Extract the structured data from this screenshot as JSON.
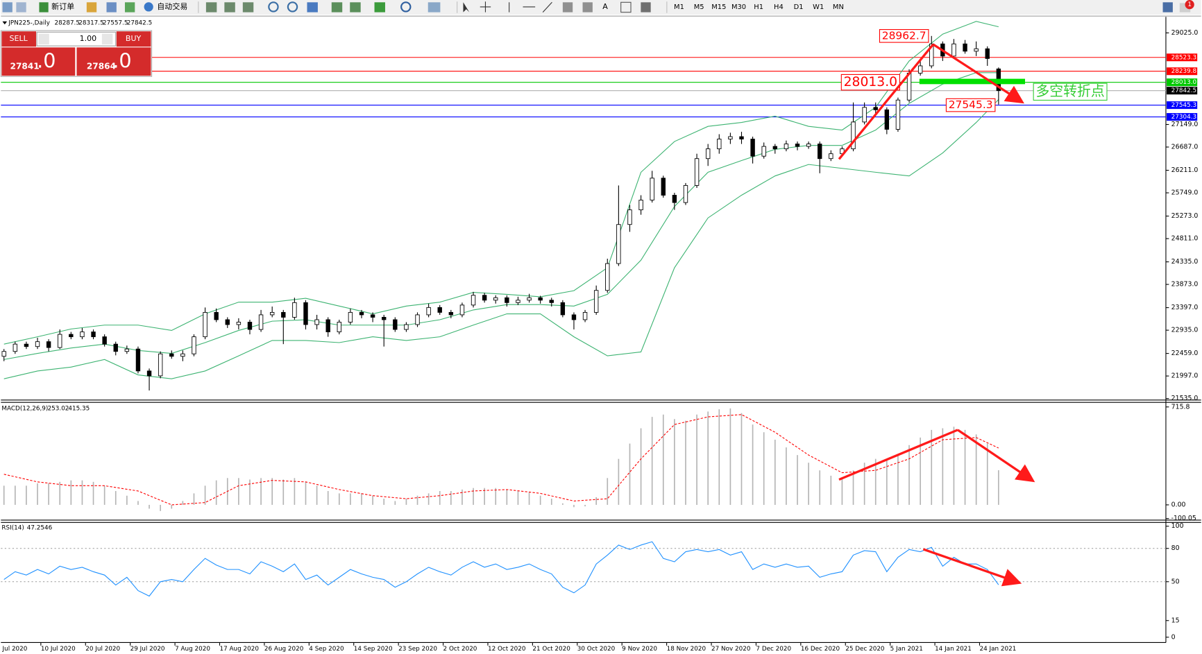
{
  "toolbar": {
    "new_order": "新订单",
    "auto_trading": "自动交易",
    "timeframes": [
      "M1",
      "M5",
      "M15",
      "M30",
      "H1",
      "H4",
      "D1",
      "W1",
      "MN"
    ],
    "badge": "1"
  },
  "trade_panel": {
    "sell": "SELL",
    "buy": "BUY",
    "lots": "1.00",
    "sell_price": "27841",
    "sell_pips": ".0",
    "buy_price": "27864",
    "buy_pips": ".0"
  },
  "chart_data": [
    {
      "type": "candlestick",
      "symbol": "JPN225-,Daily",
      "ohlc": [
        [
          22400,
          22550,
          22300,
          22500
        ],
        [
          22500,
          22700,
          22450,
          22650
        ],
        [
          22650,
          22700,
          22550,
          22600
        ],
        [
          22600,
          22780,
          22550,
          22700
        ],
        [
          22700,
          22750,
          22500,
          22580
        ],
        [
          22580,
          22950,
          22550,
          22850
        ],
        [
          22850,
          22900,
          22750,
          22800
        ],
        [
          22800,
          22980,
          22750,
          22900
        ],
        [
          22900,
          22950,
          22750,
          22800
        ],
        [
          22800,
          22850,
          22600,
          22650
        ],
        [
          22650,
          22700,
          22420,
          22500
        ],
        [
          22500,
          22620,
          22450,
          22550
        ],
        [
          22550,
          22600,
          22050,
          22100
        ],
        [
          22100,
          22150,
          21700,
          22000
        ],
        [
          22000,
          22500,
          21950,
          22450
        ],
        [
          22450,
          22520,
          22350,
          22400
        ],
        [
          22400,
          22520,
          22300,
          22450
        ],
        [
          22450,
          22850,
          22400,
          22800
        ],
        [
          22800,
          23400,
          22750,
          23300
        ],
        [
          23300,
          23380,
          23100,
          23150
        ],
        [
          23150,
          23200,
          22980,
          23050
        ],
        [
          23050,
          23180,
          22950,
          23100
        ],
        [
          23100,
          23150,
          22850,
          22950
        ],
        [
          22950,
          23350,
          22900,
          23250
        ],
        [
          23250,
          23420,
          23200,
          23300
        ],
        [
          23300,
          23350,
          22650,
          23200
        ],
        [
          23200,
          23600,
          23150,
          23500
        ],
        [
          23500,
          23550,
          22950,
          23050
        ],
        [
          23050,
          23250,
          22950,
          23150
        ],
        [
          23150,
          23200,
          22800,
          22900
        ],
        [
          22900,
          23150,
          22850,
          23100
        ],
        [
          23100,
          23380,
          23050,
          23300
        ],
        [
          23300,
          23350,
          23180,
          23250
        ],
        [
          23250,
          23300,
          23100,
          23200
        ],
        [
          23200,
          23250,
          22600,
          23150
        ],
        [
          23150,
          23200,
          22900,
          22950
        ],
        [
          22950,
          23100,
          22900,
          23050
        ],
        [
          23050,
          23300,
          23000,
          23250
        ],
        [
          23250,
          23480,
          23200,
          23400
        ],
        [
          23400,
          23450,
          23250,
          23300
        ],
        [
          23300,
          23350,
          23180,
          23250
        ],
        [
          23250,
          23500,
          23200,
          23450
        ],
        [
          23450,
          23720,
          23400,
          23650
        ],
        [
          23650,
          23700,
          23500,
          23550
        ],
        [
          23550,
          23650,
          23480,
          23600
        ],
        [
          23600,
          23650,
          23420,
          23500
        ],
        [
          23500,
          23620,
          23450,
          23550
        ],
        [
          23550,
          23680,
          23500,
          23600
        ],
        [
          23600,
          23640,
          23480,
          23550
        ],
        [
          23550,
          23600,
          23420,
          23500
        ],
        [
          23500,
          23550,
          23200,
          23250
        ],
        [
          23250,
          23300,
          22950,
          23150
        ],
        [
          23150,
          23350,
          23100,
          23300
        ],
        [
          23300,
          23850,
          23250,
          23750
        ],
        [
          23750,
          24400,
          23700,
          24300
        ],
        [
          24300,
          25900,
          24250,
          25100
        ],
        [
          25100,
          25500,
          24950,
          25400
        ],
        [
          25400,
          25700,
          25300,
          25600
        ],
        [
          25600,
          26200,
          25550,
          26050
        ],
        [
          26050,
          26100,
          25650,
          25700
        ],
        [
          25700,
          25750,
          25400,
          25550
        ],
        [
          25550,
          25950,
          25500,
          25900
        ],
        [
          25900,
          26550,
          25850,
          26450
        ],
        [
          26450,
          26750,
          26300,
          26650
        ],
        [
          26650,
          26950,
          26550,
          26850
        ],
        [
          26850,
          26980,
          26750,
          26900
        ],
        [
          26900,
          27000,
          26750,
          26850
        ],
        [
          26850,
          26900,
          26350,
          26500
        ],
        [
          26500,
          26780,
          26450,
          26700
        ],
        [
          26700,
          26750,
          26550,
          26650
        ],
        [
          26650,
          26820,
          26600,
          26750
        ],
        [
          26750,
          26800,
          26620,
          26700
        ],
        [
          26700,
          26800,
          26650,
          26750
        ],
        [
          26750,
          26800,
          26150,
          26450
        ],
        [
          26450,
          26620,
          26400,
          26550
        ],
        [
          26550,
          26700,
          26500,
          26650
        ],
        [
          26650,
          27600,
          26600,
          27200
        ],
        [
          27200,
          27600,
          27150,
          27500
        ],
        [
          27500,
          27600,
          27350,
          27450
        ],
        [
          27450,
          27500,
          26950,
          27050
        ],
        [
          27050,
          27700,
          27000,
          27650
        ],
        [
          27650,
          28280,
          27600,
          28200
        ],
        [
          28200,
          28450,
          28150,
          28350
        ],
        [
          28350,
          28962.7,
          28300,
          28800
        ],
        [
          28800,
          28850,
          28450,
          28550
        ],
        [
          28550,
          28900,
          28500,
          28800
        ],
        [
          28800,
          28880,
          28600,
          28650
        ],
        [
          28650,
          28850,
          28550,
          28700
        ],
        [
          28700,
          28750,
          28350,
          28500
        ],
        [
          28287.5,
          28317.5,
          27557.5,
          27842.5
        ]
      ],
      "bands": {
        "color": "#3cb371",
        "x": [
          0,
          3,
          6,
          9,
          12,
          15,
          18,
          21,
          24,
          27,
          30,
          33,
          36,
          39,
          42,
          45,
          48,
          51,
          54,
          57,
          60,
          63,
          66,
          69,
          72,
          75,
          78,
          81,
          84,
          87,
          89
        ],
        "upper": [
          22650,
          22800,
          22960,
          23040,
          23040,
          22930,
          23270,
          23510,
          23510,
          23590,
          23430,
          23270,
          23430,
          23510,
          23710,
          23670,
          23620,
          23745,
          24215,
          26170,
          26800,
          27110,
          27190,
          27320,
          27110,
          27035,
          27500,
          28450,
          29000,
          29260,
          29150
        ],
        "middle": [
          22335,
          22460,
          22570,
          22650,
          22520,
          22460,
          22680,
          22930,
          23120,
          23150,
          23040,
          23040,
          23040,
          23150,
          23350,
          23460,
          23460,
          23430,
          23670,
          24370,
          25470,
          26170,
          26410,
          26640,
          26720,
          26720,
          27035,
          27580,
          27975,
          28210,
          28210
        ],
        "lower": [
          21940,
          22100,
          22180,
          22335,
          22020,
          21940,
          22100,
          22410,
          22725,
          22725,
          22680,
          22800,
          22725,
          22800,
          23040,
          23270,
          23270,
          22800,
          22410,
          22490,
          24215,
          25235,
          25700,
          26095,
          26330,
          26250,
          26170,
          26095,
          26565,
          27190,
          27660
        ]
      },
      "levels": [
        {
          "value": 28523.3,
          "color": "#ff0000"
        },
        {
          "value": 28239.8,
          "color": "#ff0000"
        },
        {
          "value": 28013,
          "label": "28013.0",
          "color": "#00c800"
        },
        {
          "value": 27545.3,
          "color": "#0000ff"
        },
        {
          "value": 27304.3,
          "color": "#0000ff"
        }
      ],
      "bid": 27842.5,
      "annotations": [
        28962.7,
        {
          "value": 28013,
          "label": "28013.0"
        },
        27545.3
      ],
      "note": "多空转折点",
      "ylim": [
        21504,
        29323
      ],
      "yticks": [
        {
          "value": 21535,
          "label": "21535.0"
        },
        {
          "value": 21997,
          "label": "21997.0"
        },
        {
          "value": 22459,
          "label": "22459.0"
        },
        {
          "value": 22935,
          "label": "22935.0"
        },
        {
          "value": 23397,
          "label": "23397.0"
        },
        {
          "value": 23873,
          "label": "23873.0"
        },
        {
          "value": 24335,
          "label": "24335.0"
        },
        {
          "value": 24811,
          "label": "24811.0"
        },
        {
          "value": 25273,
          "label": "25273.0"
        },
        {
          "value": 25749,
          "label": "25749.0"
        },
        {
          "value": 26211,
          "label": "26211.0"
        },
        {
          "value": 26687,
          "label": "26687.0"
        },
        {
          "value": 27149,
          "label": "27149.0"
        },
        {
          "value": 29025,
          "label": "29025.0"
        }
      ],
      "xticks": [
        {
          "value": -0.7,
          "label": "Jul 2020"
        },
        {
          "value": 3.3,
          "label": "10 Jul 2020"
        },
        {
          "value": 7.3,
          "label": "20 Jul 2020"
        },
        {
          "value": 11.3,
          "label": "29 Jul 2020"
        },
        {
          "value": 15.3,
          "label": "7 Aug 2020"
        },
        {
          "value": 19.3,
          "label": "17 Aug 2020"
        },
        {
          "value": 23.3,
          "label": "26 Aug 2020"
        },
        {
          "value": 27.3,
          "label": "4 Sep 2020"
        },
        {
          "value": 31.3,
          "label": "14 Sep 2020"
        },
        {
          "value": 35.3,
          "label": "23 Sep 2020"
        },
        {
          "value": 39.3,
          "label": "2 Oct 2020"
        },
        {
          "value": 43.3,
          "label": "12 Oct 2020"
        },
        {
          "value": 47.3,
          "label": "21 Oct 2020"
        },
        {
          "value": 51.3,
          "label": "30 Oct 2020"
        },
        {
          "value": 55.3,
          "label": "9 Nov 2020"
        },
        {
          "value": 59.3,
          "label": "18 Nov 2020"
        },
        {
          "value": 63.3,
          "label": "27 Nov 2020"
        },
        {
          "value": 67.3,
          "label": "7 Dec 2020"
        },
        {
          "value": 71.3,
          "label": "16 Dec 2020"
        },
        {
          "value": 75.3,
          "label": "25 Dec 2020"
        },
        {
          "value": 79.3,
          "label": "5 Jan 2021"
        },
        {
          "value": 83.3,
          "label": "14 Jan 2021"
        },
        {
          "value": 87.3,
          "label": "24 Jan 2021"
        }
      ]
    },
    {
      "type": "macd",
      "title": "MACD(12,26,9)",
      "histogram": [
        140,
        140,
        140,
        157,
        157,
        168,
        179,
        179,
        168,
        140,
        101,
        67,
        28,
        -28,
        -45,
        -28,
        28,
        84,
        140,
        179,
        196,
        196,
        185,
        196,
        196,
        185,
        196,
        168,
        140,
        101,
        84,
        84,
        84,
        67,
        45,
        28,
        45,
        67,
        84,
        101,
        101,
        112,
        123,
        123,
        123,
        112,
        101,
        90,
        67,
        45,
        11,
        -17,
        -11,
        56,
        196,
        336,
        448,
        560,
        643,
        660,
        627,
        615,
        660,
        682,
        699,
        705,
        671,
        587,
        531,
        476,
        420,
        364,
        308,
        252,
        213,
        196,
        252,
        308,
        336,
        325,
        364,
        437,
        492,
        548,
        560,
        571,
        548,
        515,
        448,
        253.02
      ],
      "histogram_color": "#b4b4b4",
      "signal": {
        "color": "#ff0000",
        "x": [
          0,
          3,
          6,
          9,
          12,
          15,
          18,
          21,
          24,
          27,
          30,
          33,
          36,
          39,
          42,
          45,
          48,
          51,
          54,
          57,
          60,
          63,
          66,
          69,
          72,
          75,
          78,
          81,
          84,
          87,
          89
        ],
        "values": [
          224,
          168,
          140,
          140,
          101,
          0,
          17,
          140,
          179,
          168,
          112,
          67,
          45,
          67,
          101,
          112,
          84,
          28,
          45,
          336,
          587,
          643,
          660,
          531,
          364,
          235,
          252,
          336,
          476,
          492,
          415.35
        ]
      },
      "ylim": [
        -111.8,
        743.8
      ],
      "yticks": [
        715.8,
        {
          "value": 0,
          "label": "0.00"
        },
        -100.05
      ]
    },
    {
      "type": "line",
      "title": "RSI(14)",
      "color": "#1e90ff",
      "values": [
        52,
        59,
        56,
        61,
        57,
        64,
        61,
        63,
        59,
        56,
        47,
        54,
        42,
        37,
        50,
        52,
        50,
        61,
        71,
        65,
        61,
        61,
        57,
        68,
        64,
        59,
        66,
        52,
        56,
        47,
        54,
        61,
        57,
        54,
        52,
        45,
        50,
        57,
        63,
        59,
        56,
        63,
        68,
        63,
        66,
        61,
        63,
        66,
        61,
        57,
        45,
        40,
        47,
        66,
        74,
        83,
        79,
        83,
        86,
        71,
        68,
        77,
        79,
        77,
        79,
        74,
        77,
        61,
        66,
        63,
        66,
        63,
        64,
        54,
        57,
        59,
        74,
        78,
        77,
        59,
        72,
        79,
        77,
        81,
        64,
        72,
        66,
        66,
        61,
        47.2546
      ],
      "levels": [
        80,
        50
      ],
      "ylim": [
        -4.8,
        103.4
      ],
      "yticks": [
        100,
        80,
        50,
        15,
        0
      ]
    }
  ]
}
